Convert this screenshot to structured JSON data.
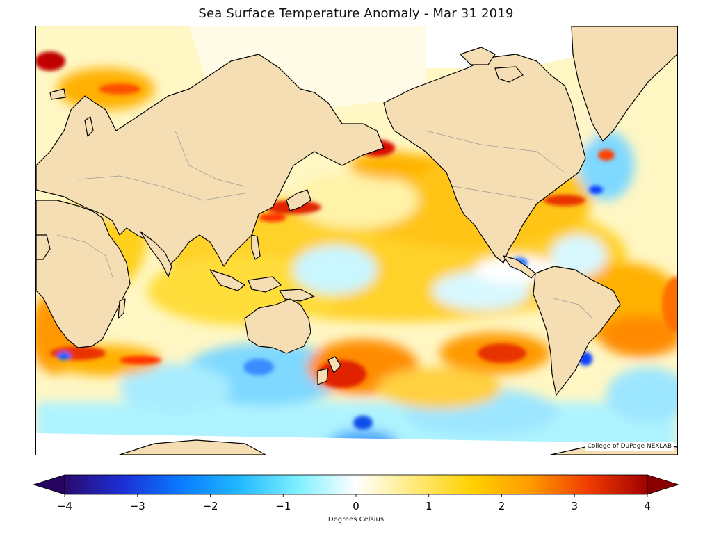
{
  "title": "Sea Surface Temperature Anomaly - Mar 31 2019",
  "credit": "College of DuPage NEXLAB",
  "colorbar": {
    "min": -4,
    "max": 4,
    "ticks": [
      -4,
      -3,
      -2,
      -1,
      0,
      1,
      2,
      3,
      4
    ],
    "tick_labels": [
      "−4",
      "−3",
      "−2",
      "−1",
      "0",
      "1",
      "2",
      "3",
      "4"
    ],
    "label": "Degrees Celsius",
    "extend": "both",
    "colors": [
      "#2a0a6e",
      "#1c2fd6",
      "#0a7bff",
      "#22b8ff",
      "#7ef0ff",
      "#ffffff",
      "#ffea7a",
      "#ffd000",
      "#ff9a00",
      "#f03a00",
      "#a00000"
    ]
  },
  "map": {
    "projection": "Mercator, Pacific-centered",
    "land_color": "#f5deb3",
    "ice_color": "#ffffff"
  }
}
